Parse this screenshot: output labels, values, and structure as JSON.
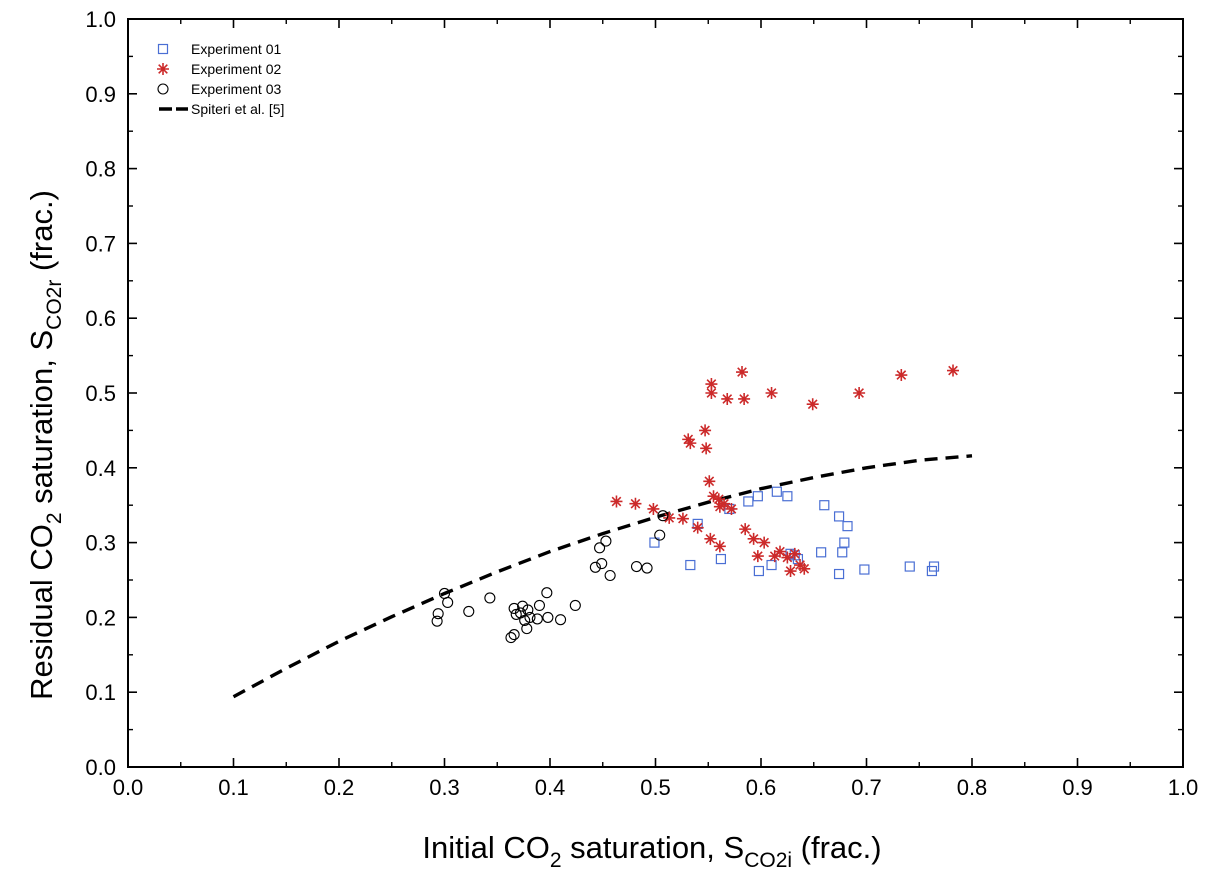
{
  "chart_data": {
    "type": "scatter",
    "title": "",
    "xlabel": {
      "prefix": "Initial CO",
      "prefix_sub": "2",
      "middle": " saturation, S",
      "symbol_sub": "CO2i",
      "suffix": " (frac.)"
    },
    "ylabel": {
      "prefix": "Residual CO",
      "prefix_sub": "2",
      "middle": " saturation, S",
      "symbol_sub": "CO2r",
      "suffix": " (frac.)"
    },
    "xlim": [
      0.0,
      1.0
    ],
    "ylim": [
      0.0,
      1.0
    ],
    "x_ticks": [
      0.0,
      0.1,
      0.2,
      0.3,
      0.4,
      0.5,
      0.6,
      0.7,
      0.8,
      0.9,
      1.0
    ],
    "y_ticks": [
      0.0,
      0.1,
      0.2,
      0.3,
      0.4,
      0.5,
      0.6,
      0.7,
      0.8,
      0.9,
      1.0
    ],
    "x_tick_labels": [
      "0.0",
      "0.1",
      "0.2",
      "0.3",
      "0.4",
      "0.5",
      "0.6",
      "0.7",
      "0.8",
      "0.9",
      "1.0"
    ],
    "y_tick_labels": [
      "0.0",
      "0.1",
      "0.2",
      "0.3",
      "0.4",
      "0.5",
      "0.6",
      "0.7",
      "0.8",
      "0.9",
      "1.0"
    ],
    "grid": false,
    "legend_position": "top-left",
    "series": [
      {
        "name": "Experiment 01",
        "marker": "square",
        "color": "#4a6fd4",
        "points": [
          [
            0.499,
            0.3
          ],
          [
            0.533,
            0.27
          ],
          [
            0.54,
            0.325
          ],
          [
            0.562,
            0.278
          ],
          [
            0.57,
            0.345
          ],
          [
            0.588,
            0.355
          ],
          [
            0.597,
            0.362
          ],
          [
            0.598,
            0.262
          ],
          [
            0.61,
            0.27
          ],
          [
            0.615,
            0.368
          ],
          [
            0.625,
            0.362
          ],
          [
            0.628,
            0.285
          ],
          [
            0.632,
            0.283
          ],
          [
            0.635,
            0.278
          ],
          [
            0.657,
            0.287
          ],
          [
            0.66,
            0.35
          ],
          [
            0.674,
            0.335
          ],
          [
            0.674,
            0.258
          ],
          [
            0.677,
            0.287
          ],
          [
            0.679,
            0.3
          ],
          [
            0.682,
            0.322
          ],
          [
            0.698,
            0.264
          ],
          [
            0.741,
            0.268
          ],
          [
            0.762,
            0.262
          ],
          [
            0.764,
            0.268
          ]
        ]
      },
      {
        "name": "Experiment 02",
        "marker": "asterisk",
        "color": "#cc2a2a",
        "points": [
          [
            0.463,
            0.355
          ],
          [
            0.481,
            0.352
          ],
          [
            0.498,
            0.345
          ],
          [
            0.513,
            0.333
          ],
          [
            0.526,
            0.332
          ],
          [
            0.531,
            0.438
          ],
          [
            0.533,
            0.433
          ],
          [
            0.54,
            0.32
          ],
          [
            0.547,
            0.45
          ],
          [
            0.548,
            0.426
          ],
          [
            0.551,
            0.382
          ],
          [
            0.552,
            0.305
          ],
          [
            0.553,
            0.512
          ],
          [
            0.553,
            0.5
          ],
          [
            0.555,
            0.362
          ],
          [
            0.56,
            0.358
          ],
          [
            0.561,
            0.348
          ],
          [
            0.561,
            0.295
          ],
          [
            0.565,
            0.352
          ],
          [
            0.568,
            0.492
          ],
          [
            0.572,
            0.345
          ],
          [
            0.582,
            0.528
          ],
          [
            0.584,
            0.492
          ],
          [
            0.585,
            0.318
          ],
          [
            0.593,
            0.305
          ],
          [
            0.597,
            0.282
          ],
          [
            0.603,
            0.3
          ],
          [
            0.61,
            0.5
          ],
          [
            0.613,
            0.282
          ],
          [
            0.618,
            0.288
          ],
          [
            0.625,
            0.28
          ],
          [
            0.628,
            0.262
          ],
          [
            0.632,
            0.285
          ],
          [
            0.637,
            0.27
          ],
          [
            0.641,
            0.265
          ],
          [
            0.649,
            0.485
          ],
          [
            0.693,
            0.5
          ],
          [
            0.733,
            0.524
          ],
          [
            0.782,
            0.53
          ]
        ]
      },
      {
        "name": "Experiment 03",
        "marker": "circle",
        "color": "#000000",
        "points": [
          [
            0.293,
            0.195
          ],
          [
            0.294,
            0.205
          ],
          [
            0.3,
            0.232
          ],
          [
            0.303,
            0.22
          ],
          [
            0.323,
            0.208
          ],
          [
            0.343,
            0.226
          ],
          [
            0.363,
            0.173
          ],
          [
            0.366,
            0.212
          ],
          [
            0.366,
            0.177
          ],
          [
            0.368,
            0.204
          ],
          [
            0.372,
            0.206
          ],
          [
            0.374,
            0.215
          ],
          [
            0.376,
            0.196
          ],
          [
            0.378,
            0.185
          ],
          [
            0.379,
            0.21
          ],
          [
            0.381,
            0.2
          ],
          [
            0.388,
            0.198
          ],
          [
            0.39,
            0.216
          ],
          [
            0.397,
            0.233
          ],
          [
            0.398,
            0.2
          ],
          [
            0.41,
            0.197
          ],
          [
            0.424,
            0.216
          ],
          [
            0.443,
            0.267
          ],
          [
            0.447,
            0.293
          ],
          [
            0.449,
            0.272
          ],
          [
            0.453,
            0.302
          ],
          [
            0.457,
            0.256
          ],
          [
            0.482,
            0.268
          ],
          [
            0.492,
            0.266
          ],
          [
            0.504,
            0.31
          ],
          [
            0.507,
            0.336
          ]
        ]
      },
      {
        "name": "Spiteri et al. [5]",
        "marker": "dashed-line",
        "color": "#000000",
        "points": [
          [
            0.1,
            0.094
          ],
          [
            0.15,
            0.132
          ],
          [
            0.2,
            0.168
          ],
          [
            0.25,
            0.201
          ],
          [
            0.3,
            0.232
          ],
          [
            0.35,
            0.261
          ],
          [
            0.4,
            0.288
          ],
          [
            0.45,
            0.312
          ],
          [
            0.5,
            0.334
          ],
          [
            0.55,
            0.354
          ],
          [
            0.6,
            0.372
          ],
          [
            0.65,
            0.387
          ],
          [
            0.7,
            0.4
          ],
          [
            0.75,
            0.41
          ],
          [
            0.8,
            0.416
          ]
        ]
      }
    ]
  }
}
